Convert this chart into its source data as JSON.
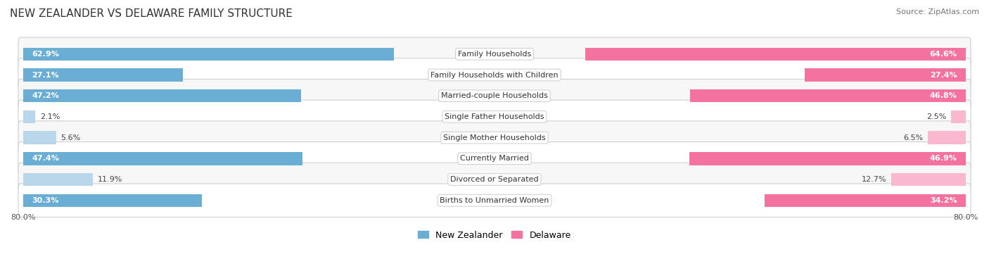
{
  "title": "NEW ZEALANDER VS DELAWARE FAMILY STRUCTURE",
  "source": "Source: ZipAtlas.com",
  "categories": [
    "Family Households",
    "Family Households with Children",
    "Married-couple Households",
    "Single Father Households",
    "Single Mother Households",
    "Currently Married",
    "Divorced or Separated",
    "Births to Unmarried Women"
  ],
  "nz_values": [
    62.9,
    27.1,
    47.2,
    2.1,
    5.6,
    47.4,
    11.9,
    30.3
  ],
  "de_values": [
    64.6,
    27.4,
    46.8,
    2.5,
    6.5,
    46.9,
    12.7,
    34.2
  ],
  "nz_color_large": "#6aaed6",
  "nz_color_small": "#bad6eb",
  "de_color_large": "#f472a0",
  "de_color_small": "#f9b8d0",
  "axis_max": 80.0,
  "legend_nz": "New Zealander",
  "legend_de": "Delaware",
  "background_color": "#ffffff",
  "row_bg_even": "#f7f7f7",
  "row_bg_odd": "#ffffff",
  "bar_height": 0.62,
  "label_threshold": 15.0,
  "title_fontsize": 11,
  "source_fontsize": 8,
  "tick_fontsize": 8,
  "bar_fontsize": 8,
  "cat_fontsize": 8
}
